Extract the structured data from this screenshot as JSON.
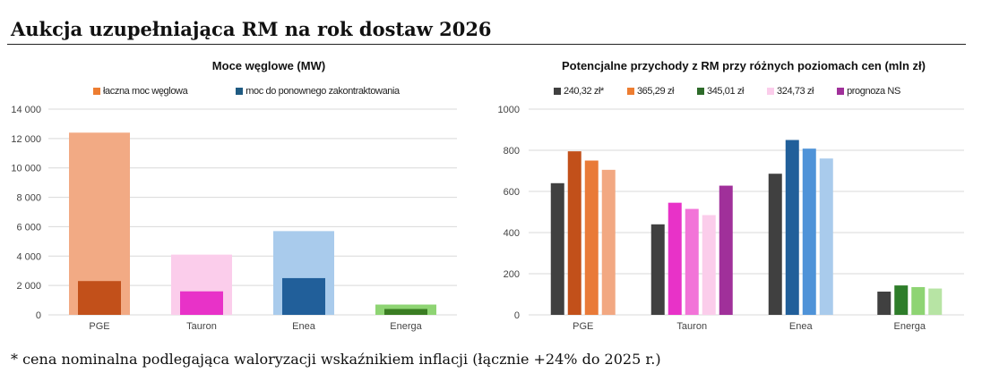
{
  "page": {
    "title": "Aukcja uzupełniająca RM na rok dostaw 2026",
    "footnote": "* cena nominalna podlegająca waloryzacji wskaźnikiem inflacji (łącznie +24% do 2025 r.)"
  },
  "chart_data": [
    {
      "type": "bar",
      "title": "Moce węglowe (MW)",
      "categories": [
        "PGE",
        "Tauron",
        "Enea",
        "Energa"
      ],
      "series": [
        {
          "name": "łaczna moc węglowa",
          "values": [
            12400,
            4100,
            5700,
            700
          ],
          "legend_color": "#ED7D31",
          "colors": [
            "#F2AA84",
            "#FBCDEB",
            "#A9CBEC",
            "#8ED473"
          ]
        },
        {
          "name": "moc do ponownego zakontraktowania",
          "values": [
            2300,
            1600,
            2500,
            400
          ],
          "legend_color": "#1F5B82",
          "colors": [
            "#C2501A",
            "#E832C8",
            "#215F9A",
            "#3A7D22"
          ]
        }
      ],
      "ylim": [
        0,
        14000
      ],
      "yticks": [
        "0",
        "2 000",
        "4 000",
        "6 000",
        "8 000",
        "10 000",
        "12 000",
        "14 000"
      ],
      "grid": true,
      "legend": "top"
    },
    {
      "type": "bar",
      "title": "Potencjalne przychody z RM przy różnych poziomach cen (mln zł)",
      "categories": [
        "PGE",
        "Tauron",
        "Enea",
        "Energa"
      ],
      "series": [
        {
          "name": "240,32 zł*",
          "legend_color": "#404040",
          "values": [
            640,
            440,
            686,
            113
          ]
        },
        {
          "name": "365,29 zł",
          "legend_color": "#ED7D31",
          "values": [
            795,
            545,
            850,
            143
          ]
        },
        {
          "name": "345,01 zł",
          "legend_color": "#2E6B2A",
          "values": [
            750,
            515,
            808,
            135
          ]
        },
        {
          "name": "324,73 zł",
          "legend_color": "#FBCDEB",
          "values": [
            705,
            485,
            760,
            128
          ]
        },
        {
          "name": "prognoza NS",
          "legend_color": "#A0309A",
          "values": [
            null,
            628,
            null,
            null
          ]
        }
      ],
      "bar_colors": [
        [
          "#404040",
          "#C2501A",
          "#E97A38",
          "#F2A882"
        ],
        [
          "#404040",
          "#E832C8",
          "#F274D8",
          "#FBCDEB",
          "#A0309A"
        ],
        [
          "#404040",
          "#215F9A",
          "#4F93D8",
          "#A9CBEC"
        ],
        [
          "#404040",
          "#2E7D2A",
          "#8ED473",
          "#B7E4A4"
        ]
      ],
      "ylim": [
        0,
        1000
      ],
      "yticks": [
        "0",
        "200",
        "400",
        "600",
        "800",
        "1000"
      ],
      "grid": true,
      "legend": "top"
    }
  ]
}
